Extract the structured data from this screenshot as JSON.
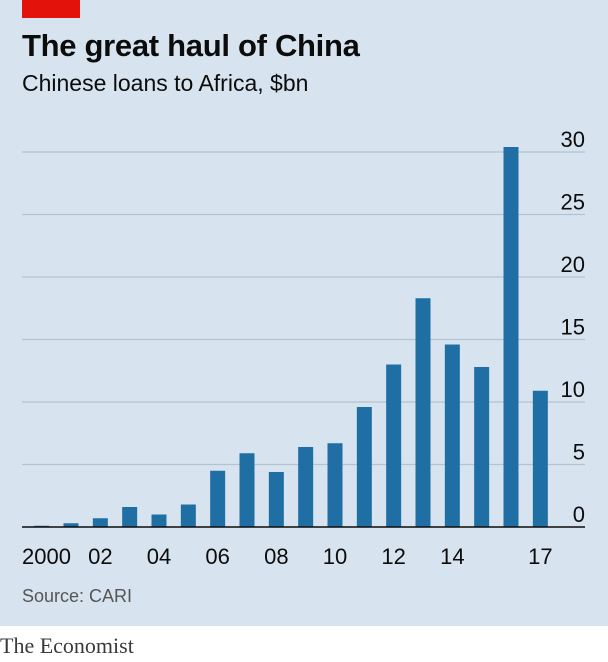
{
  "title": "The great haul of China",
  "subtitle": "Chinese loans to Africa, $bn",
  "source": "Source: CARI",
  "brand": "The Economist",
  "colors": {
    "bar": "#1f6fa5",
    "background": "#d7e4ef",
    "accent": "#e3120b",
    "grid": "#b3c3cf"
  },
  "chart_data": {
    "type": "bar",
    "title": "The great haul of China",
    "subtitle": "Chinese loans to Africa, $bn",
    "categories": [
      "2000",
      "2001",
      "2002",
      "2003",
      "2004",
      "2005",
      "2006",
      "2007",
      "2008",
      "2009",
      "2010",
      "2011",
      "2012",
      "2013",
      "2014",
      "2015",
      "2016",
      "2017"
    ],
    "x_tick_labels": [
      "2000",
      "02",
      "04",
      "06",
      "08",
      "10",
      "12",
      "14",
      "17"
    ],
    "x_tick_label_categories": [
      "2000",
      "2002",
      "2004",
      "2006",
      "2008",
      "2010",
      "2012",
      "2014",
      "2017"
    ],
    "values": [
      0.1,
      0.3,
      0.7,
      1.6,
      1.0,
      1.8,
      4.5,
      5.9,
      4.4,
      6.4,
      6.7,
      9.6,
      13.0,
      18.3,
      14.6,
      12.8,
      30.4,
      10.9
    ],
    "y_ticks": [
      0,
      5,
      10,
      15,
      20,
      25,
      30
    ],
    "ylim": [
      0,
      30
    ],
    "y_axis_position": "right",
    "grid": true,
    "legend": "none"
  }
}
